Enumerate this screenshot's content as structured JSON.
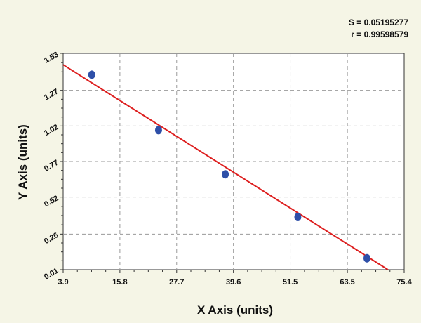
{
  "chart_data": {
    "type": "scatter",
    "xlabel": "X Axis (units)",
    "ylabel": "Y Axis (units)",
    "xlim": [
      3.9,
      75.4
    ],
    "ylim": [
      0.01,
      1.53
    ],
    "x_ticks": [
      "3.9",
      "15.8",
      "27.7",
      "39.6",
      "51.5",
      "63.5",
      "75.4"
    ],
    "y_ticks": [
      "0.01",
      "0.26",
      "0.52",
      "0.77",
      "1.02",
      "1.27",
      "1.53"
    ],
    "grid": true,
    "points": [
      {
        "x": 9.9,
        "y": 1.38
      },
      {
        "x": 23.9,
        "y": 0.99
      },
      {
        "x": 37.9,
        "y": 0.68
      },
      {
        "x": 53.1,
        "y": 0.38
      },
      {
        "x": 67.6,
        "y": 0.09
      }
    ],
    "fit_line": {
      "x": [
        3.9,
        72.0
      ],
      "y": [
        1.45,
        0.01
      ]
    },
    "colors": {
      "points": "#2e4fa8",
      "fit_line": "#dd1f1f",
      "background": "#f5f5e6",
      "plot_area": "#ffffff"
    },
    "stats": {
      "s_text": "S = 0.05195277",
      "r_text": "r = 0.99598579"
    }
  }
}
